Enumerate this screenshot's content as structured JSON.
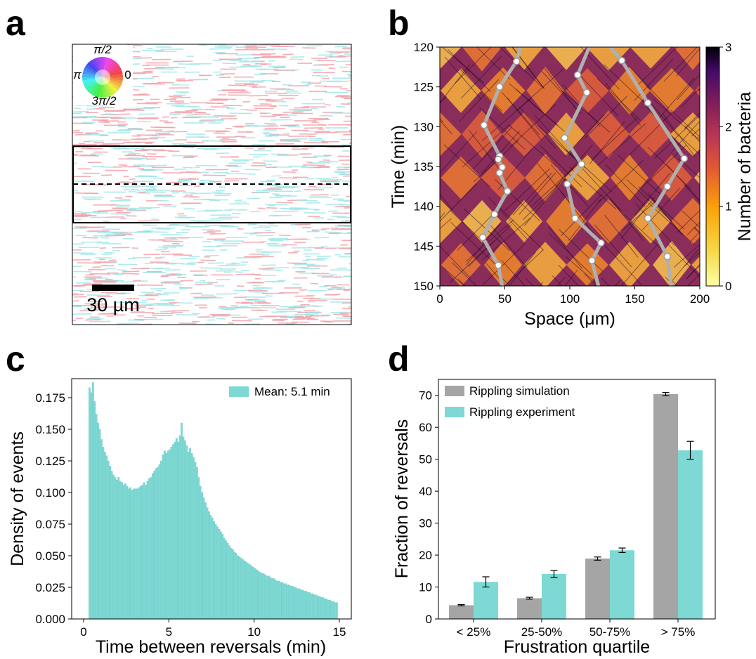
{
  "panels": {
    "a": {
      "label": "a"
    },
    "b": {
      "label": "b"
    },
    "c": {
      "label": "c"
    },
    "d": {
      "label": "d"
    }
  },
  "colors": {
    "teal": "#7ed8d3",
    "gray": "#a5a5a5",
    "pink": "#f2a0a8",
    "cyan": "#9fe6e8",
    "ridge": "#b0b0b0"
  },
  "chart_data": [
    {
      "type": "heatmap",
      "id": "a",
      "wheel_labels": {
        "top": "π/2",
        "left": "π",
        "right": "0",
        "bottom": "3π/2"
      },
      "scalebar_label": "30 µm",
      "rows_per_band": [
        {
          "state": "pink-dominant"
        },
        {
          "state": "mixed"
        },
        {
          "state": "mixed"
        },
        {
          "state": "pink-dominant"
        }
      ]
    },
    {
      "type": "heatmap",
      "id": "b",
      "title": "",
      "xlabel": "Space (μm)",
      "ylabel": "Time (min)",
      "xlim": [
        0,
        200
      ],
      "ylim": [
        120,
        150
      ],
      "x_ticks": [
        "0",
        "50",
        "100",
        "150",
        "200"
      ],
      "y_ticks": [
        "120",
        "125",
        "130",
        "135",
        "140",
        "145",
        "150"
      ],
      "colorbar": {
        "label": "Number of bacteria",
        "range": [
          0,
          3
        ],
        "ticks": [
          "0",
          "1",
          "2",
          "3"
        ]
      },
      "tracks": [
        {
          "points": [
            [
              62,
              120
            ],
            [
              59,
              121.8
            ],
            [
              46,
              125
            ],
            [
              34,
              129.8
            ],
            [
              46,
              133.7
            ],
            [
              45,
              134.1
            ],
            [
              48,
              135.1
            ],
            [
              46,
              135.8
            ],
            [
              52,
              138.1
            ],
            [
              42,
              141
            ],
            [
              33,
              143.9
            ],
            [
              45,
              147.4
            ],
            [
              48,
              150
            ]
          ]
        },
        {
          "points": [
            [
              115,
              120
            ],
            [
              106,
              123.5
            ],
            [
              113,
              125.7
            ],
            [
              96,
              131.4
            ],
            [
              109,
              134.7
            ],
            [
              98,
              137.2
            ],
            [
              104,
              141.5
            ],
            [
              124,
              144.6
            ],
            [
              117,
              146.8
            ],
            [
              122,
              150
            ]
          ]
        },
        {
          "points": [
            [
              131,
              120
            ],
            [
              140,
              121.7
            ],
            [
              160,
              127
            ],
            [
              188,
              134
            ],
            [
              175,
              137.5
            ],
            [
              160,
              141.5
            ],
            [
              175,
              146.3
            ],
            [
              178,
              150
            ]
          ]
        }
      ]
    },
    {
      "type": "bar",
      "id": "c",
      "xlabel": "Time between reversals (min)",
      "ylabel": "Density of events",
      "xlim": [
        -0.7,
        15.7
      ],
      "ylim": [
        0,
        0.19
      ],
      "x_ticks": [
        "0",
        "5",
        "10",
        "15"
      ],
      "y_ticks": [
        "0.000",
        "0.025",
        "0.050",
        "0.075",
        "0.100",
        "0.125",
        "0.150",
        "0.175"
      ],
      "legend": {
        "label": "Mean: 5.1 min",
        "position": "top-right"
      },
      "bin_start": 0.3,
      "bin_width": 0.1,
      "values": [
        0.183,
        0.179,
        0.187,
        0.172,
        0.162,
        0.155,
        0.15,
        0.142,
        0.136,
        0.132,
        0.129,
        0.125,
        0.121,
        0.117,
        0.114,
        0.112,
        0.11,
        0.112,
        0.109,
        0.108,
        0.106,
        0.107,
        0.105,
        0.103,
        0.104,
        0.102,
        0.103,
        0.103,
        0.103,
        0.104,
        0.105,
        0.106,
        0.108,
        0.106,
        0.109,
        0.111,
        0.112,
        0.115,
        0.117,
        0.119,
        0.12,
        0.122,
        0.125,
        0.13,
        0.133,
        0.131,
        0.133,
        0.134,
        0.136,
        0.138,
        0.14,
        0.143,
        0.14,
        0.145,
        0.155,
        0.144,
        0.141,
        0.137,
        0.132,
        0.135,
        0.131,
        0.128,
        0.124,
        0.12,
        0.112,
        0.105,
        0.1,
        0.096,
        0.092,
        0.088,
        0.085,
        0.082,
        0.08,
        0.077,
        0.075,
        0.073,
        0.071,
        0.069,
        0.067,
        0.064,
        0.062,
        0.06,
        0.058,
        0.056,
        0.055,
        0.053,
        0.052,
        0.05,
        0.049,
        0.048,
        0.047,
        0.046,
        0.045,
        0.044,
        0.043,
        0.042,
        0.041,
        0.04,
        0.039,
        0.038,
        0.037,
        0.036,
        0.036,
        0.035,
        0.034,
        0.034,
        0.033,
        0.032,
        0.032,
        0.031,
        0.03,
        0.03,
        0.029,
        0.029,
        0.028,
        0.028,
        0.027,
        0.027,
        0.026,
        0.026,
        0.025,
        0.025,
        0.024,
        0.024,
        0.023,
        0.023,
        0.022,
        0.022,
        0.021,
        0.021,
        0.02,
        0.02,
        0.019,
        0.019,
        0.018,
        0.018,
        0.017,
        0.017,
        0.016,
        0.016,
        0.015,
        0.015,
        0.014,
        0.014,
        0.013,
        0.013
      ]
    },
    {
      "type": "bar",
      "id": "d",
      "xlabel": "Frustration quartile",
      "ylabel": "Fraction of reversals",
      "ylim": [
        0,
        75
      ],
      "y_ticks": [
        "0",
        "10",
        "20",
        "30",
        "40",
        "50",
        "60",
        "70"
      ],
      "categories": [
        "< 25%",
        "25-50%",
        "50-75%",
        "> 75%"
      ],
      "series": [
        {
          "name": "Rippling simulation",
          "values": [
            4.3,
            6.5,
            18.9,
            70.4
          ],
          "errors": [
            0.2,
            0.3,
            0.5,
            0.5
          ]
        },
        {
          "name": "Rippling experiment",
          "values": [
            11.6,
            14.1,
            21.5,
            52.8
          ],
          "errors": [
            1.6,
            1.1,
            0.7,
            2.8
          ]
        }
      ],
      "legend_position": "top-left"
    }
  ]
}
